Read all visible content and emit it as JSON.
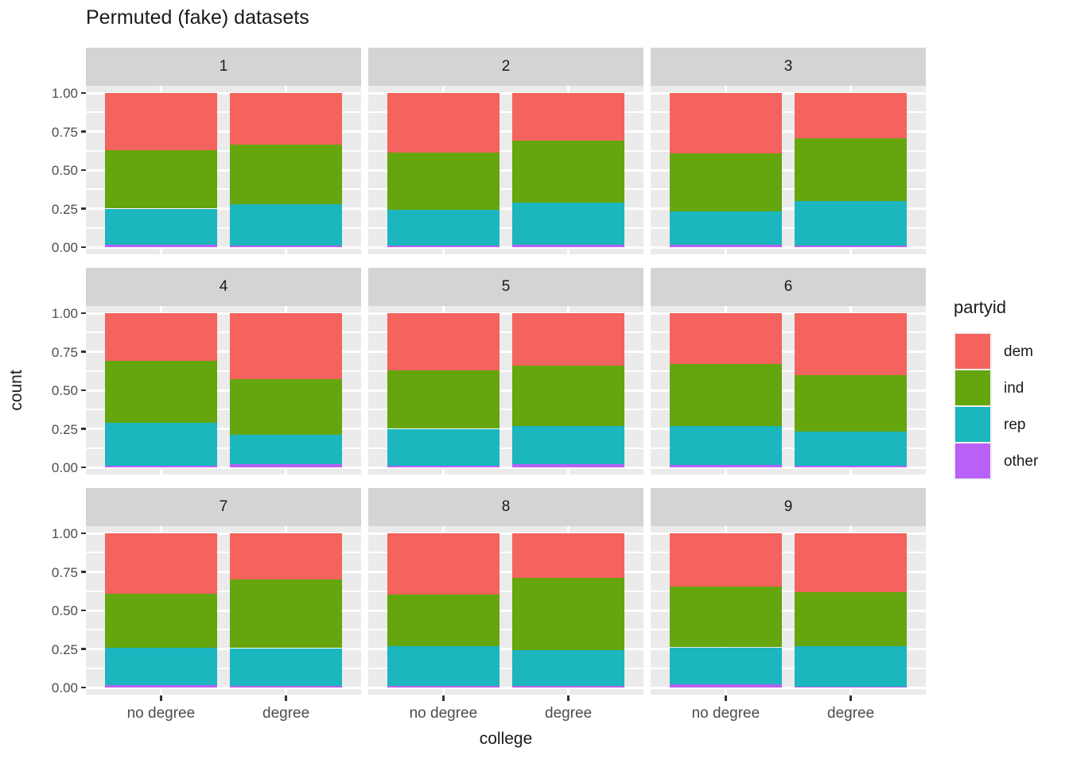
{
  "title": "Permuted (fake) datasets",
  "colors": {
    "dem": "#F4635D",
    "ind": "#65A50E",
    "rep": "#1BB6BE",
    "other": "#B860F8",
    "panel_bg": "#EBEBEB",
    "strip_bg": "#D4D4D4",
    "gridline": "#FFFFFF",
    "tick_text": "#4D4D4D",
    "axis_text": "#1A1A1A"
  },
  "chart_data": {
    "type": "bar",
    "variant": "stacked_proportion_faceted",
    "title": "Permuted (fake) datasets",
    "xlabel": "college",
    "ylabel": "count",
    "categories": [
      "no degree",
      "degree"
    ],
    "ylim": [
      0,
      1
    ],
    "ytick_labels": [
      "1.00",
      "0.75",
      "0.50",
      "0.25",
      "0.00"
    ],
    "ytick_values": [
      1.0,
      0.75,
      0.5,
      0.25,
      0.0
    ],
    "grid": true,
    "legend": {
      "title": "partyid",
      "position": "right",
      "entries": [
        {
          "label": "dem",
          "color": "#F4635D"
        },
        {
          "label": "ind",
          "color": "#65A50E"
        },
        {
          "label": "rep",
          "color": "#1BB6BE"
        },
        {
          "label": "other",
          "color": "#B860F8"
        }
      ]
    },
    "stack_order_bottom_to_top": [
      "other",
      "rep",
      "ind",
      "dem"
    ],
    "facets": [
      {
        "label": "1",
        "bars": [
          {
            "category": "no degree",
            "segments": {
              "other": 0.015,
              "rep": 0.235,
              "ind": 0.38,
              "dem": 0.37
            }
          },
          {
            "category": "degree",
            "segments": {
              "other": 0.01,
              "rep": 0.27,
              "ind": 0.385,
              "dem": 0.335
            }
          }
        ]
      },
      {
        "label": "2",
        "bars": [
          {
            "category": "no degree",
            "segments": {
              "other": 0.01,
              "rep": 0.23,
              "ind": 0.375,
              "dem": 0.385
            }
          },
          {
            "category": "degree",
            "segments": {
              "other": 0.015,
              "rep": 0.275,
              "ind": 0.4,
              "dem": 0.31
            }
          }
        ]
      },
      {
        "label": "3",
        "bars": [
          {
            "category": "no degree",
            "segments": {
              "other": 0.015,
              "rep": 0.215,
              "ind": 0.38,
              "dem": 0.39
            }
          },
          {
            "category": "degree",
            "segments": {
              "other": 0.01,
              "rep": 0.29,
              "ind": 0.405,
              "dem": 0.295
            }
          }
        ]
      },
      {
        "label": "4",
        "bars": [
          {
            "category": "no degree",
            "segments": {
              "other": 0.01,
              "rep": 0.28,
              "ind": 0.4,
              "dem": 0.31
            }
          },
          {
            "category": "degree",
            "segments": {
              "other": 0.02,
              "rep": 0.19,
              "ind": 0.36,
              "dem": 0.43
            }
          }
        ]
      },
      {
        "label": "5",
        "bars": [
          {
            "category": "no degree",
            "segments": {
              "other": 0.01,
              "rep": 0.24,
              "ind": 0.38,
              "dem": 0.37
            }
          },
          {
            "category": "degree",
            "segments": {
              "other": 0.02,
              "rep": 0.25,
              "ind": 0.39,
              "dem": 0.34
            }
          }
        ]
      },
      {
        "label": "6",
        "bars": [
          {
            "category": "no degree",
            "segments": {
              "other": 0.015,
              "rep": 0.255,
              "ind": 0.4,
              "dem": 0.33
            }
          },
          {
            "category": "degree",
            "segments": {
              "other": 0.01,
              "rep": 0.22,
              "ind": 0.37,
              "dem": 0.4
            }
          }
        ]
      },
      {
        "label": "7",
        "bars": [
          {
            "category": "no degree",
            "segments": {
              "other": 0.015,
              "rep": 0.245,
              "ind": 0.35,
              "dem": 0.39
            }
          },
          {
            "category": "degree",
            "segments": {
              "other": 0.01,
              "rep": 0.245,
              "ind": 0.445,
              "dem": 0.3
            }
          }
        ]
      },
      {
        "label": "8",
        "bars": [
          {
            "category": "no degree",
            "segments": {
              "other": 0.01,
              "rep": 0.26,
              "ind": 0.335,
              "dem": 0.395
            }
          },
          {
            "category": "degree",
            "segments": {
              "other": 0.01,
              "rep": 0.23,
              "ind": 0.47,
              "dem": 0.29
            }
          }
        ]
      },
      {
        "label": "9",
        "bars": [
          {
            "category": "no degree",
            "segments": {
              "other": 0.02,
              "rep": 0.24,
              "ind": 0.395,
              "dem": 0.345
            }
          },
          {
            "category": "degree",
            "segments": {
              "other": 0.005,
              "rep": 0.265,
              "ind": 0.35,
              "dem": 0.38
            }
          }
        ]
      }
    ]
  }
}
